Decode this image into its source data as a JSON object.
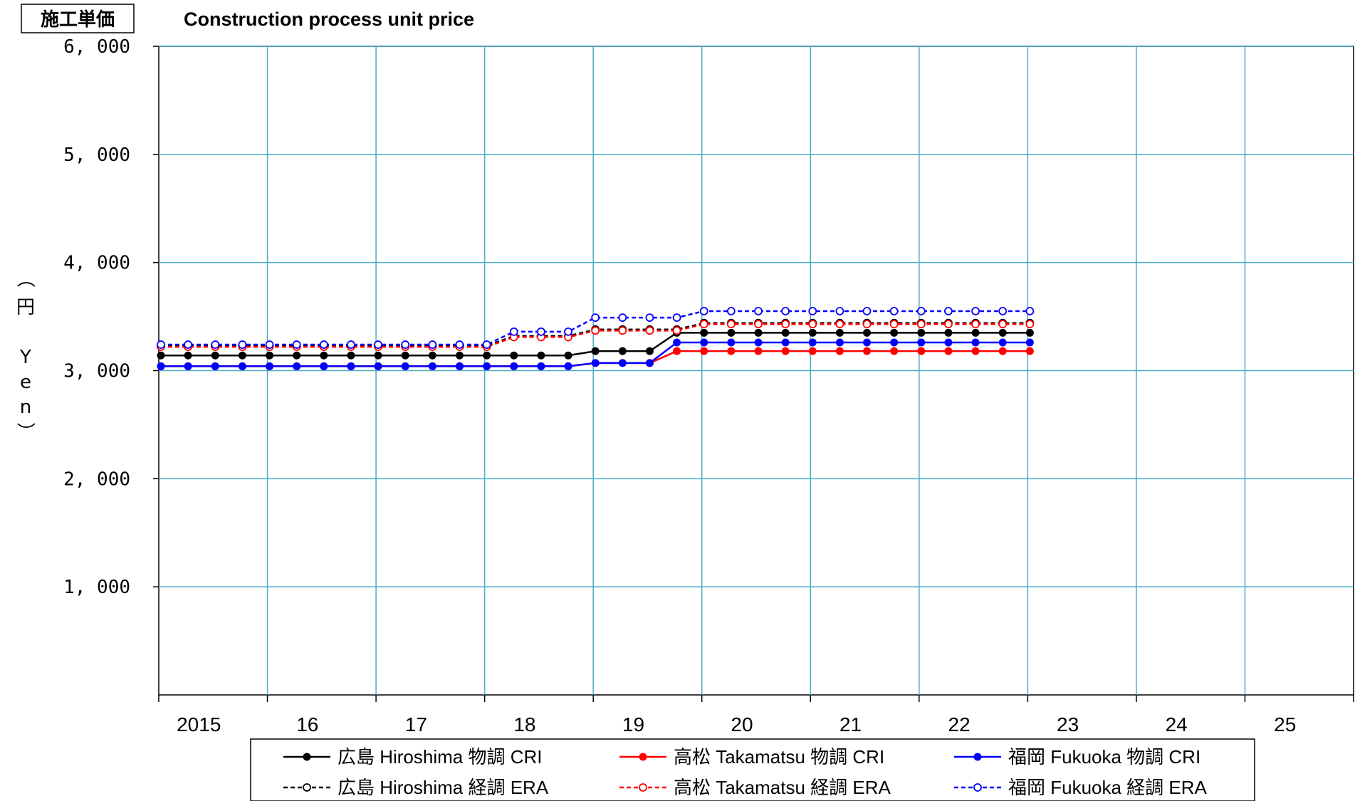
{
  "chart_data": {
    "type": "line",
    "title_badge": "施工単価",
    "title": "Construction process unit price",
    "ylabel_chars": [
      "（",
      "円",
      "",
      "Y",
      "e",
      "n",
      "）"
    ],
    "ylim": [
      0,
      6000
    ],
    "yticks": [
      1000,
      2000,
      3000,
      4000,
      5000,
      6000
    ],
    "ytick_labels": [
      "1, 000",
      "2, 000",
      "3, 000",
      "4, 000",
      "5, 000",
      "6, 000"
    ],
    "xlim": [
      2015,
      2026
    ],
    "xticks": [
      2015,
      2016,
      2017,
      2018,
      2019,
      2020,
      2021,
      2022,
      2023,
      2024,
      2025
    ],
    "xtick_labels": [
      "2015",
      "16",
      "17",
      "18",
      "19",
      "20",
      "21",
      "22",
      "23",
      "24",
      "25"
    ],
    "grid": true,
    "legend_position": "bottom",
    "x": [
      2015.0,
      2015.25,
      2015.5,
      2015.75,
      2016.0,
      2016.25,
      2016.5,
      2016.75,
      2017.0,
      2017.25,
      2017.5,
      2017.75,
      2018.0,
      2018.25,
      2018.5,
      2018.75,
      2019.0,
      2019.25,
      2019.5,
      2019.75,
      2020.0,
      2020.25,
      2020.5,
      2020.75,
      2021.0,
      2021.25,
      2021.5,
      2021.75,
      2022.0,
      2022.25,
      2022.5,
      2022.75,
      2023.0
    ],
    "series": [
      {
        "name": "広島 Hiroshima 物調 CRI",
        "color": "#000000",
        "style": "solid",
        "marker": "filled",
        "values": [
          3140,
          3140,
          3140,
          3140,
          3140,
          3140,
          3140,
          3140,
          3140,
          3140,
          3140,
          3140,
          3140,
          3140,
          3140,
          3140,
          3180,
          3180,
          3180,
          3350,
          3350,
          3350,
          3350,
          3350,
          3350,
          3350,
          3350,
          3350,
          3350,
          3350,
          3350,
          3350,
          3350
        ]
      },
      {
        "name": "高松 Takamatsu 物調 CRI",
        "color": "#ff0000",
        "style": "solid",
        "marker": "filled",
        "values": [
          3040,
          3040,
          3040,
          3040,
          3040,
          3040,
          3040,
          3040,
          3040,
          3040,
          3040,
          3040,
          3040,
          3040,
          3040,
          3040,
          3070,
          3070,
          3070,
          3180,
          3180,
          3180,
          3180,
          3180,
          3180,
          3180,
          3180,
          3180,
          3180,
          3180,
          3180,
          3180,
          3180
        ]
      },
      {
        "name": "福岡 Fukuoka  物調 CRI",
        "color": "#0000ff",
        "style": "solid",
        "marker": "filled",
        "values": [
          3040,
          3040,
          3040,
          3040,
          3040,
          3040,
          3040,
          3040,
          3040,
          3040,
          3040,
          3040,
          3040,
          3040,
          3040,
          3040,
          3070,
          3070,
          3070,
          3260,
          3260,
          3260,
          3260,
          3260,
          3260,
          3260,
          3260,
          3260,
          3260,
          3260,
          3260,
          3260,
          3260
        ]
      },
      {
        "name": "広島 Hiroshima 経調 ERA",
        "color": "#000000",
        "style": "dashed",
        "marker": "open",
        "values": [
          3230,
          3230,
          3230,
          3230,
          3230,
          3230,
          3230,
          3230,
          3230,
          3230,
          3230,
          3230,
          3230,
          3320,
          3320,
          3320,
          3380,
          3380,
          3380,
          3380,
          3440,
          3440,
          3440,
          3440,
          3440,
          3440,
          3440,
          3440,
          3440,
          3440,
          3440,
          3440,
          3440
        ]
      },
      {
        "name": "高松 Takamatsu 経調 ERA",
        "color": "#ff0000",
        "style": "dashed",
        "marker": "open",
        "values": [
          3220,
          3220,
          3220,
          3220,
          3220,
          3220,
          3220,
          3220,
          3220,
          3220,
          3220,
          3220,
          3220,
          3310,
          3310,
          3310,
          3370,
          3370,
          3370,
          3370,
          3430,
          3430,
          3430,
          3430,
          3430,
          3430,
          3430,
          3430,
          3430,
          3430,
          3430,
          3430,
          3430
        ]
      },
      {
        "name": "福岡 Fukuoka  経調 ERA",
        "color": "#0000ff",
        "style": "dashed",
        "marker": "open",
        "values": [
          3240,
          3240,
          3240,
          3240,
          3240,
          3240,
          3240,
          3240,
          3240,
          3240,
          3240,
          3240,
          3240,
          3360,
          3360,
          3360,
          3490,
          3490,
          3490,
          3490,
          3550,
          3550,
          3550,
          3550,
          3550,
          3550,
          3550,
          3550,
          3550,
          3550,
          3550,
          3550,
          3550
        ]
      }
    ]
  }
}
